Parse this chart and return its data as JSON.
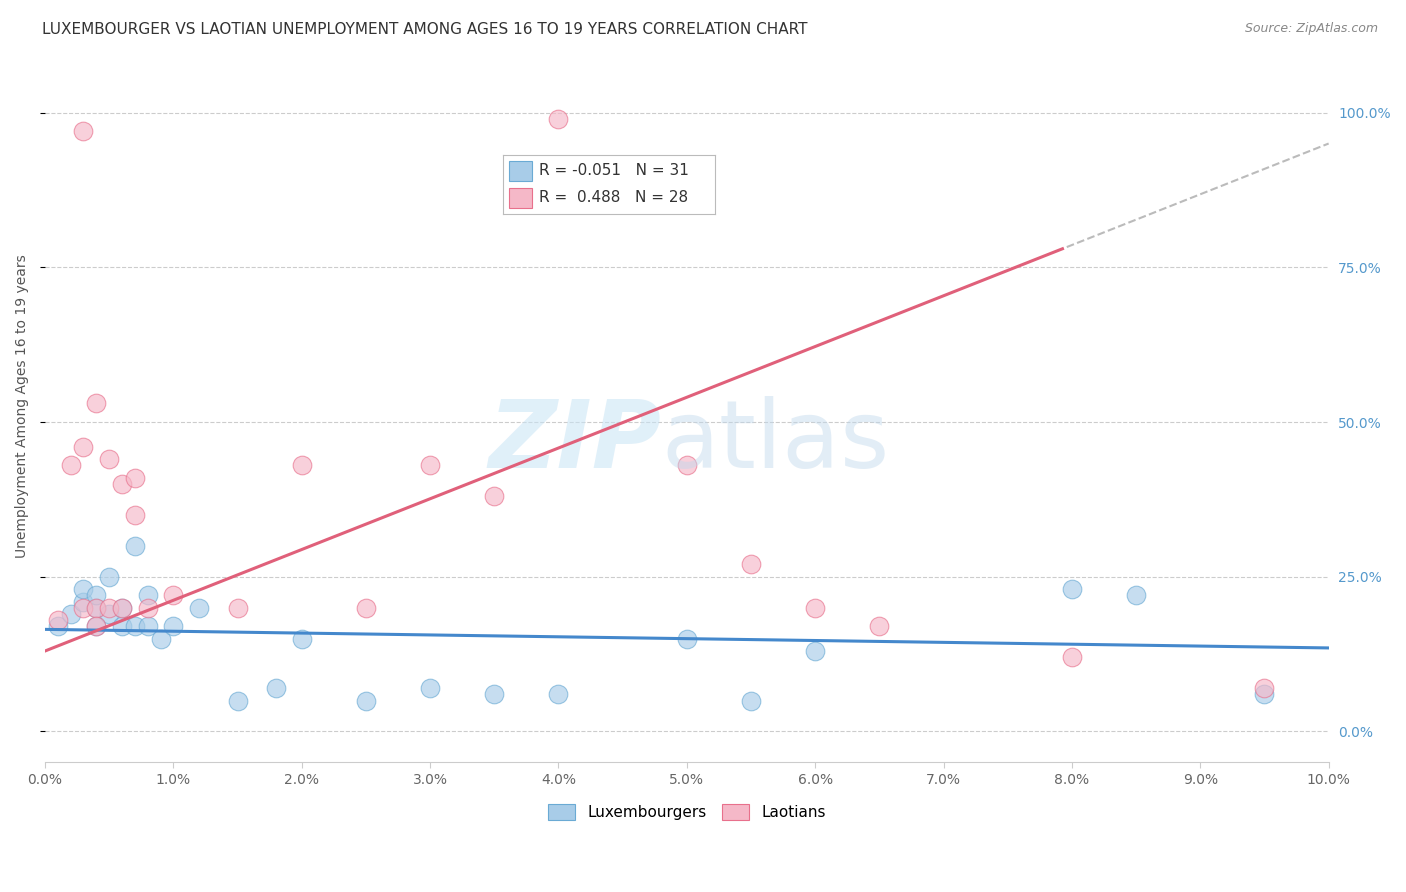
{
  "title": "LUXEMBOURGER VS LAOTIAN UNEMPLOYMENT AMONG AGES 16 TO 19 YEARS CORRELATION CHART",
  "source": "Source: ZipAtlas.com",
  "ylabel": "Unemployment Among Ages 16 to 19 years",
  "xlim": [
    0.0,
    0.1
  ],
  "ylim": [
    -0.05,
    1.1
  ],
  "xticks": [
    0.0,
    0.01,
    0.02,
    0.03,
    0.04,
    0.05,
    0.06,
    0.07,
    0.08,
    0.09,
    0.1
  ],
  "xticklabels": [
    "0.0%",
    "1.0%",
    "2.0%",
    "3.0%",
    "4.0%",
    "5.0%",
    "6.0%",
    "7.0%",
    "8.0%",
    "9.0%",
    "10.0%"
  ],
  "yticks_right": [
    0.0,
    0.25,
    0.5,
    0.75,
    1.0
  ],
  "yticklabels_right": [
    "0.0%",
    "25.0%",
    "50.0%",
    "75.0%",
    "100.0%"
  ],
  "lux_color": "#a8cce8",
  "lux_color_edge": "#6aaad4",
  "lao_color": "#f5b8c8",
  "lao_color_edge": "#e8708c",
  "lux_line_color": "#4488cc",
  "lao_line_color": "#e0607a",
  "lux_R": -0.051,
  "lux_N": 31,
  "lao_R": 0.488,
  "lao_N": 28,
  "background_color": "#ffffff",
  "grid_color": "#cccccc",
  "lux_x": [
    0.001,
    0.002,
    0.003,
    0.003,
    0.004,
    0.004,
    0.004,
    0.005,
    0.005,
    0.006,
    0.006,
    0.007,
    0.007,
    0.008,
    0.008,
    0.009,
    0.01,
    0.012,
    0.015,
    0.018,
    0.02,
    0.025,
    0.03,
    0.035,
    0.04,
    0.05,
    0.055,
    0.06,
    0.08,
    0.085,
    0.095
  ],
  "lux_y": [
    0.17,
    0.19,
    0.21,
    0.23,
    0.2,
    0.17,
    0.22,
    0.19,
    0.25,
    0.17,
    0.2,
    0.3,
    0.17,
    0.22,
    0.17,
    0.15,
    0.17,
    0.2,
    0.05,
    0.07,
    0.15,
    0.05,
    0.07,
    0.06,
    0.06,
    0.15,
    0.05,
    0.13,
    0.23,
    0.22,
    0.06
  ],
  "lao_x": [
    0.001,
    0.002,
    0.003,
    0.003,
    0.003,
    0.004,
    0.004,
    0.004,
    0.005,
    0.005,
    0.006,
    0.006,
    0.007,
    0.007,
    0.008,
    0.01,
    0.015,
    0.02,
    0.025,
    0.03,
    0.035,
    0.04,
    0.05,
    0.055,
    0.06,
    0.065,
    0.08,
    0.095
  ],
  "lao_y": [
    0.18,
    0.43,
    0.46,
    0.2,
    0.97,
    0.53,
    0.2,
    0.17,
    0.44,
    0.2,
    0.4,
    0.2,
    0.41,
    0.35,
    0.2,
    0.22,
    0.2,
    0.43,
    0.2,
    0.43,
    0.38,
    0.99,
    0.43,
    0.27,
    0.2,
    0.17,
    0.12,
    0.07
  ],
  "lux_slope": -0.3,
  "lux_intercept": 0.165,
  "lao_slope": 8.2,
  "lao_intercept": 0.13
}
